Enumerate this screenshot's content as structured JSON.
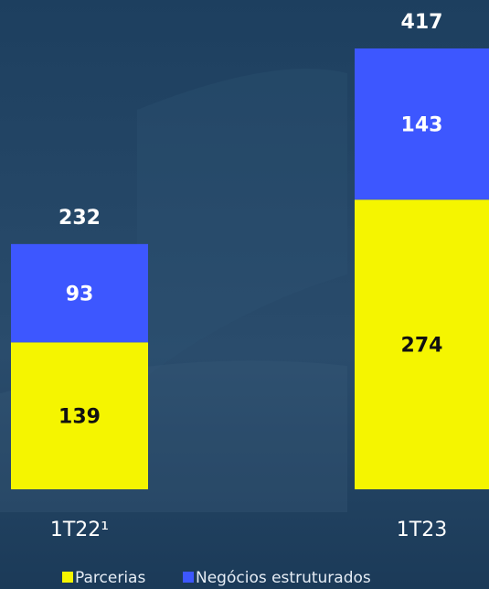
{
  "chart_data": {
    "type": "stacked_bar",
    "categories": [
      "1T22¹",
      "1T23"
    ],
    "series": [
      {
        "name": "Parcerias",
        "color": "#f5f500",
        "values": [
          139,
          274
        ]
      },
      {
        "name": "Negócios estruturados",
        "color": "#3d57ff",
        "values": [
          93,
          143
        ]
      }
    ],
    "totals": [
      232,
      417
    ]
  }
}
